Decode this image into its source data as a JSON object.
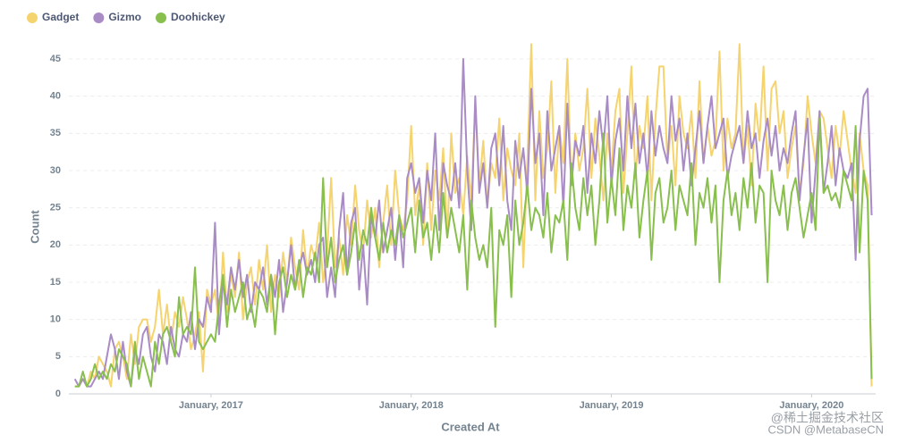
{
  "chart_data": {
    "type": "line",
    "xlabel": "Created At",
    "ylabel": "Count",
    "legend": "top-left",
    "grid": true,
    "xlim": [
      2016.29,
      2020.32
    ],
    "ylim": [
      0,
      48
    ],
    "xticks": [
      {
        "value": 2017,
        "label": "January, 2017"
      },
      {
        "value": 2018,
        "label": "January, 2018"
      },
      {
        "value": 2019,
        "label": "January, 2019"
      },
      {
        "value": 2020,
        "label": "January, 2020"
      }
    ],
    "yticks": [
      0,
      5,
      10,
      15,
      20,
      25,
      30,
      35,
      40,
      45
    ],
    "x": [
      2016.32,
      2016.34,
      2016.36,
      2016.38,
      2016.4,
      2016.42,
      2016.44,
      2016.46,
      2016.48,
      2016.5,
      2016.52,
      2016.54,
      2016.56,
      2016.58,
      2016.6,
      2016.62,
      2016.64,
      2016.66,
      2016.68,
      2016.7,
      2016.72,
      2016.74,
      2016.76,
      2016.78,
      2016.8,
      2016.82,
      2016.84,
      2016.86,
      2016.88,
      2016.9,
      2016.92,
      2016.94,
      2016.96,
      2016.98,
      2017.0,
      2017.02,
      2017.04,
      2017.06,
      2017.08,
      2017.1,
      2017.12,
      2017.14,
      2017.16,
      2017.18,
      2017.2,
      2017.22,
      2017.24,
      2017.26,
      2017.28,
      2017.3,
      2017.32,
      2017.34,
      2017.36,
      2017.38,
      2017.4,
      2017.42,
      2017.44,
      2017.46,
      2017.48,
      2017.5,
      2017.52,
      2017.54,
      2017.56,
      2017.58,
      2017.6,
      2017.62,
      2017.64,
      2017.66,
      2017.68,
      2017.7,
      2017.72,
      2017.74,
      2017.76,
      2017.78,
      2017.8,
      2017.82,
      2017.84,
      2017.86,
      2017.88,
      2017.9,
      2017.92,
      2017.94,
      2017.96,
      2017.98,
      2018.0,
      2018.02,
      2018.04,
      2018.06,
      2018.08,
      2018.1,
      2018.12,
      2018.14,
      2018.16,
      2018.18,
      2018.2,
      2018.22,
      2018.24,
      2018.26,
      2018.28,
      2018.3,
      2018.32,
      2018.34,
      2018.36,
      2018.38,
      2018.4,
      2018.42,
      2018.44,
      2018.46,
      2018.48,
      2018.5,
      2018.52,
      2018.54,
      2018.56,
      2018.58,
      2018.6,
      2018.62,
      2018.64,
      2018.66,
      2018.68,
      2018.7,
      2018.72,
      2018.74,
      2018.76,
      2018.78,
      2018.8,
      2018.82,
      2018.84,
      2018.86,
      2018.88,
      2018.9,
      2018.92,
      2018.94,
      2018.96,
      2018.98,
      2019.0,
      2019.02,
      2019.04,
      2019.06,
      2019.08,
      2019.1,
      2019.12,
      2019.14,
      2019.16,
      2019.18,
      2019.2,
      2019.22,
      2019.24,
      2019.26,
      2019.28,
      2019.3,
      2019.32,
      2019.34,
      2019.36,
      2019.38,
      2019.4,
      2019.42,
      2019.44,
      2019.46,
      2019.48,
      2019.5,
      2019.52,
      2019.54,
      2019.56,
      2019.58,
      2019.6,
      2019.62,
      2019.64,
      2019.66,
      2019.68,
      2019.7,
      2019.72,
      2019.74,
      2019.76,
      2019.78,
      2019.8,
      2019.82,
      2019.84,
      2019.86,
      2019.88,
      2019.9,
      2019.92,
      2019.94,
      2019.96,
      2019.98,
      2020.0,
      2020.02,
      2020.04,
      2020.06,
      2020.08,
      2020.1,
      2020.12,
      2020.14,
      2020.16,
      2020.18,
      2020.2,
      2020.22,
      2020.24,
      2020.26,
      2020.28,
      2020.3
    ],
    "series": [
      {
        "name": "Gadget",
        "color": "#F5D36E",
        "values": [
          1,
          1,
          2,
          1,
          3,
          2,
          5,
          4,
          3,
          1,
          6,
          7,
          5,
          2,
          8,
          4,
          9,
          10,
          10,
          7,
          9,
          14,
          8,
          12,
          7,
          11,
          9,
          13,
          10,
          6,
          8,
          11,
          3,
          14,
          12,
          14,
          9,
          19,
          11,
          16,
          13,
          19,
          10,
          15,
          17,
          12,
          18,
          14,
          20,
          11,
          16,
          13,
          19,
          15,
          21,
          17,
          14,
          22,
          16,
          20,
          18,
          23,
          15,
          19,
          29,
          17,
          21,
          16,
          24,
          20,
          28,
          22,
          19,
          26,
          21,
          25,
          17,
          23,
          28,
          20,
          30,
          24,
          22,
          26,
          36,
          24,
          28,
          20,
          31,
          22,
          30,
          26,
          33,
          21,
          35,
          27,
          29,
          24,
          32,
          26,
          39,
          28,
          34,
          25,
          31,
          29,
          37,
          26,
          33,
          30,
          28,
          35,
          17,
          31,
          47,
          26,
          38,
          29,
          33,
          42,
          27,
          36,
          31,
          45,
          28,
          35,
          30,
          33,
          41,
          29,
          37,
          32,
          26,
          35,
          30,
          38,
          41,
          27,
          35,
          44,
          29,
          36,
          33,
          40,
          26,
          37,
          44,
          44,
          31,
          36,
          28,
          40,
          35,
          33,
          38,
          29,
          42,
          31,
          36,
          32,
          34,
          46,
          30,
          37,
          33,
          35,
          47,
          31,
          36,
          28,
          39,
          34,
          44,
          30,
          41,
          42,
          35,
          38,
          29,
          33,
          36,
          27,
          31,
          40,
          35,
          31,
          38,
          37,
          33,
          29,
          36,
          32,
          38,
          34,
          30,
          27,
          35,
          30,
          28,
          1
        ]
      },
      {
        "name": "Gizmo",
        "color": "#A98BC6",
        "values": [
          2,
          1,
          2,
          1,
          1,
          2,
          3,
          2,
          5,
          8,
          6,
          2,
          7,
          3,
          1,
          6,
          4,
          8,
          9,
          5,
          3,
          8,
          7,
          4,
          9,
          6,
          5,
          8,
          7,
          11,
          6,
          10,
          9,
          13,
          11,
          23,
          8,
          15,
          12,
          17,
          14,
          18,
          13,
          16,
          11,
          15,
          14,
          17,
          12,
          16,
          13,
          18,
          11,
          15,
          20,
          14,
          17,
          19,
          16,
          18,
          15,
          20,
          21,
          13,
          17,
          13,
          22,
          27,
          16,
          23,
          25,
          14,
          20,
          12,
          24,
          21,
          26,
          19,
          22,
          25,
          18,
          24,
          17,
          29,
          31,
          27,
          29,
          23,
          30,
          26,
          35,
          22,
          31,
          28,
          26,
          31,
          25,
          45,
          30,
          22,
          40,
          27,
          31,
          25,
          33,
          35,
          28,
          36,
          26,
          22,
          34,
          29,
          33,
          27,
          41,
          31,
          35,
          24,
          38,
          30,
          33,
          36,
          25,
          39,
          28,
          34,
          32,
          36,
          27,
          35,
          31,
          38,
          33,
          40,
          28,
          34,
          37,
          30,
          40,
          33,
          39,
          31,
          35,
          29,
          38,
          32,
          36,
          33,
          31,
          40,
          34,
          37,
          30,
          35,
          28,
          33,
          38,
          31,
          36,
          40,
          33,
          35,
          37,
          29,
          32,
          34,
          36,
          31,
          38,
          33,
          35,
          29,
          34,
          37,
          32,
          36,
          30,
          33,
          31,
          35,
          38,
          26,
          32,
          37,
          23,
          30,
          38,
          27,
          31,
          36,
          28,
          33,
          30,
          29,
          31,
          18,
          34,
          40,
          41,
          24
        ]
      },
      {
        "name": "Doohickey",
        "color": "#88BF4D",
        "values": [
          1,
          1,
          3,
          1,
          2,
          4,
          2,
          3,
          2,
          4,
          3,
          6,
          5,
          4,
          1,
          7,
          2,
          5,
          3,
          1,
          7,
          4,
          8,
          9,
          7,
          5,
          13,
          8,
          9,
          8,
          17,
          7,
          6,
          7,
          8,
          7,
          12,
          16,
          9,
          14,
          11,
          13,
          15,
          10,
          12,
          9,
          14,
          13,
          11,
          16,
          8,
          15,
          17,
          13,
          16,
          14,
          18,
          13,
          17,
          16,
          19,
          15,
          29,
          17,
          21,
          15,
          18,
          20,
          16,
          19,
          23,
          18,
          22,
          20,
          25,
          21,
          18,
          23,
          19,
          22,
          20,
          24,
          21,
          23,
          25,
          19,
          26,
          21,
          23,
          18,
          24,
          19,
          27,
          21,
          25,
          22,
          19,
          24,
          14,
          26,
          21,
          18,
          20,
          17,
          25,
          9,
          22,
          20,
          24,
          13,
          26,
          20,
          23,
          28,
          22,
          25,
          24,
          21,
          27,
          19,
          24,
          23,
          26,
          18,
          31,
          25,
          22,
          29,
          24,
          28,
          20,
          26,
          35,
          23,
          29,
          24,
          33,
          22,
          28,
          25,
          31,
          21,
          26,
          30,
          18,
          27,
          29,
          23,
          25,
          30,
          22,
          28,
          26,
          24,
          31,
          20,
          27,
          25,
          29,
          23,
          28,
          15,
          26,
          30,
          24,
          27,
          22,
          29,
          25,
          31,
          23,
          28,
          27,
          15,
          30,
          26,
          24,
          28,
          22,
          27,
          29,
          25,
          21,
          24,
          27,
          22,
          37,
          27,
          28,
          26,
          27,
          25,
          30,
          28,
          26,
          36,
          19,
          30,
          26,
          2
        ]
      }
    ],
    "watermark": [
      "@稀土掘金技术社区",
      "CSDN @MetabaseCN"
    ]
  }
}
